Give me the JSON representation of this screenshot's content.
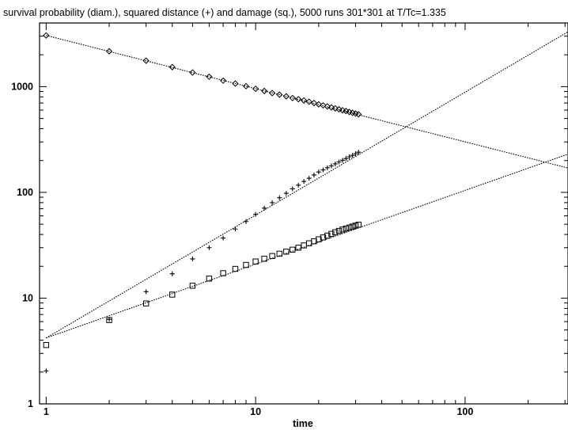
{
  "chart_data": {
    "type": "scatter",
    "title": "survival probability (diam.), squared distance (+) and damage (sq.), 5000 runs 301*301 at T/Tc=1.335",
    "xlabel": "time",
    "ylabel": "",
    "x_scale": "log",
    "y_scale": "log",
    "xlim": [
      0.93,
      310
    ],
    "ylim": [
      1,
      4000
    ],
    "x_ticks": [
      1,
      10,
      100
    ],
    "x_tick_labels": [
      "1",
      "10",
      "100"
    ],
    "y_ticks": [
      1,
      10,
      100,
      1000
    ],
    "y_tick_labels": [
      "1",
      "10",
      "100",
      "1000"
    ],
    "grid": false,
    "legend": false,
    "series": [
      {
        "marker": "diamond",
        "points": [
          [
            1,
            3050
          ],
          [
            2,
            2160
          ],
          [
            3,
            1760
          ],
          [
            4,
            1530
          ],
          [
            5,
            1360
          ],
          [
            6,
            1240
          ],
          [
            7,
            1140
          ],
          [
            8,
            1070
          ],
          [
            9,
            1010
          ],
          [
            10,
            955
          ],
          [
            11,
            910
          ],
          [
            12,
            870
          ],
          [
            13,
            840
          ],
          [
            14,
            810
          ],
          [
            15,
            780
          ],
          [
            16,
            760
          ],
          [
            17,
            740
          ],
          [
            18,
            720
          ],
          [
            19,
            700
          ],
          [
            20,
            680
          ],
          [
            21,
            665
          ],
          [
            22,
            650
          ],
          [
            23,
            636
          ],
          [
            24,
            623
          ],
          [
            25,
            610
          ],
          [
            26,
            598
          ],
          [
            27,
            587
          ],
          [
            28,
            576
          ],
          [
            29,
            566
          ],
          [
            30,
            556
          ],
          [
            31,
            547
          ]
        ],
        "fit_line": [
          [
            1,
            3050
          ],
          [
            310,
            170
          ]
        ]
      },
      {
        "marker": "plus",
        "points": [
          [
            1,
            2.05
          ],
          [
            2,
            6.3
          ],
          [
            3,
            11.5
          ],
          [
            4,
            17
          ],
          [
            5,
            23.5
          ],
          [
            6,
            30
          ],
          [
            7,
            37
          ],
          [
            8,
            45
          ],
          [
            9,
            53
          ],
          [
            10,
            62
          ],
          [
            11,
            71
          ],
          [
            12,
            80
          ],
          [
            13,
            89
          ],
          [
            14,
            98
          ],
          [
            15,
            108
          ],
          [
            16,
            117
          ],
          [
            17,
            127
          ],
          [
            18,
            136
          ],
          [
            19,
            146
          ],
          [
            20,
            156
          ],
          [
            21,
            163
          ],
          [
            22,
            171
          ],
          [
            23,
            178
          ],
          [
            24,
            186
          ],
          [
            25,
            194
          ],
          [
            26,
            201
          ],
          [
            27,
            209
          ],
          [
            28,
            217
          ],
          [
            29,
            224
          ],
          [
            30,
            232
          ],
          [
            31,
            240
          ]
        ],
        "fit_line": [
          [
            1,
            4.2
          ],
          [
            310,
            3300
          ]
        ]
      },
      {
        "marker": "square",
        "points": [
          [
            1,
            3.6
          ],
          [
            2,
            6.2
          ],
          [
            3,
            8.9
          ],
          [
            4,
            10.8
          ],
          [
            5,
            13.1
          ],
          [
            6,
            15.3
          ],
          [
            7,
            17.2
          ],
          [
            8,
            18.9
          ],
          [
            9,
            20.6
          ],
          [
            10,
            22.2
          ],
          [
            11,
            23.6
          ],
          [
            12,
            25
          ],
          [
            13,
            26.3
          ],
          [
            14,
            27.5
          ],
          [
            15,
            28.7
          ],
          [
            16,
            30
          ],
          [
            17,
            31.5
          ],
          [
            18,
            33
          ],
          [
            19,
            34.5
          ],
          [
            20,
            36
          ],
          [
            21,
            37.5
          ],
          [
            22,
            39
          ],
          [
            23,
            40.5
          ],
          [
            24,
            42
          ],
          [
            25,
            43.2
          ],
          [
            26,
            44.5
          ],
          [
            27,
            45.5
          ],
          [
            28,
            46.5
          ],
          [
            29,
            47.5
          ],
          [
            30,
            48.5
          ],
          [
            31,
            49.5
          ]
        ],
        "fit_line": [
          [
            1,
            4.2
          ],
          [
            310,
            230
          ]
        ]
      }
    ]
  }
}
